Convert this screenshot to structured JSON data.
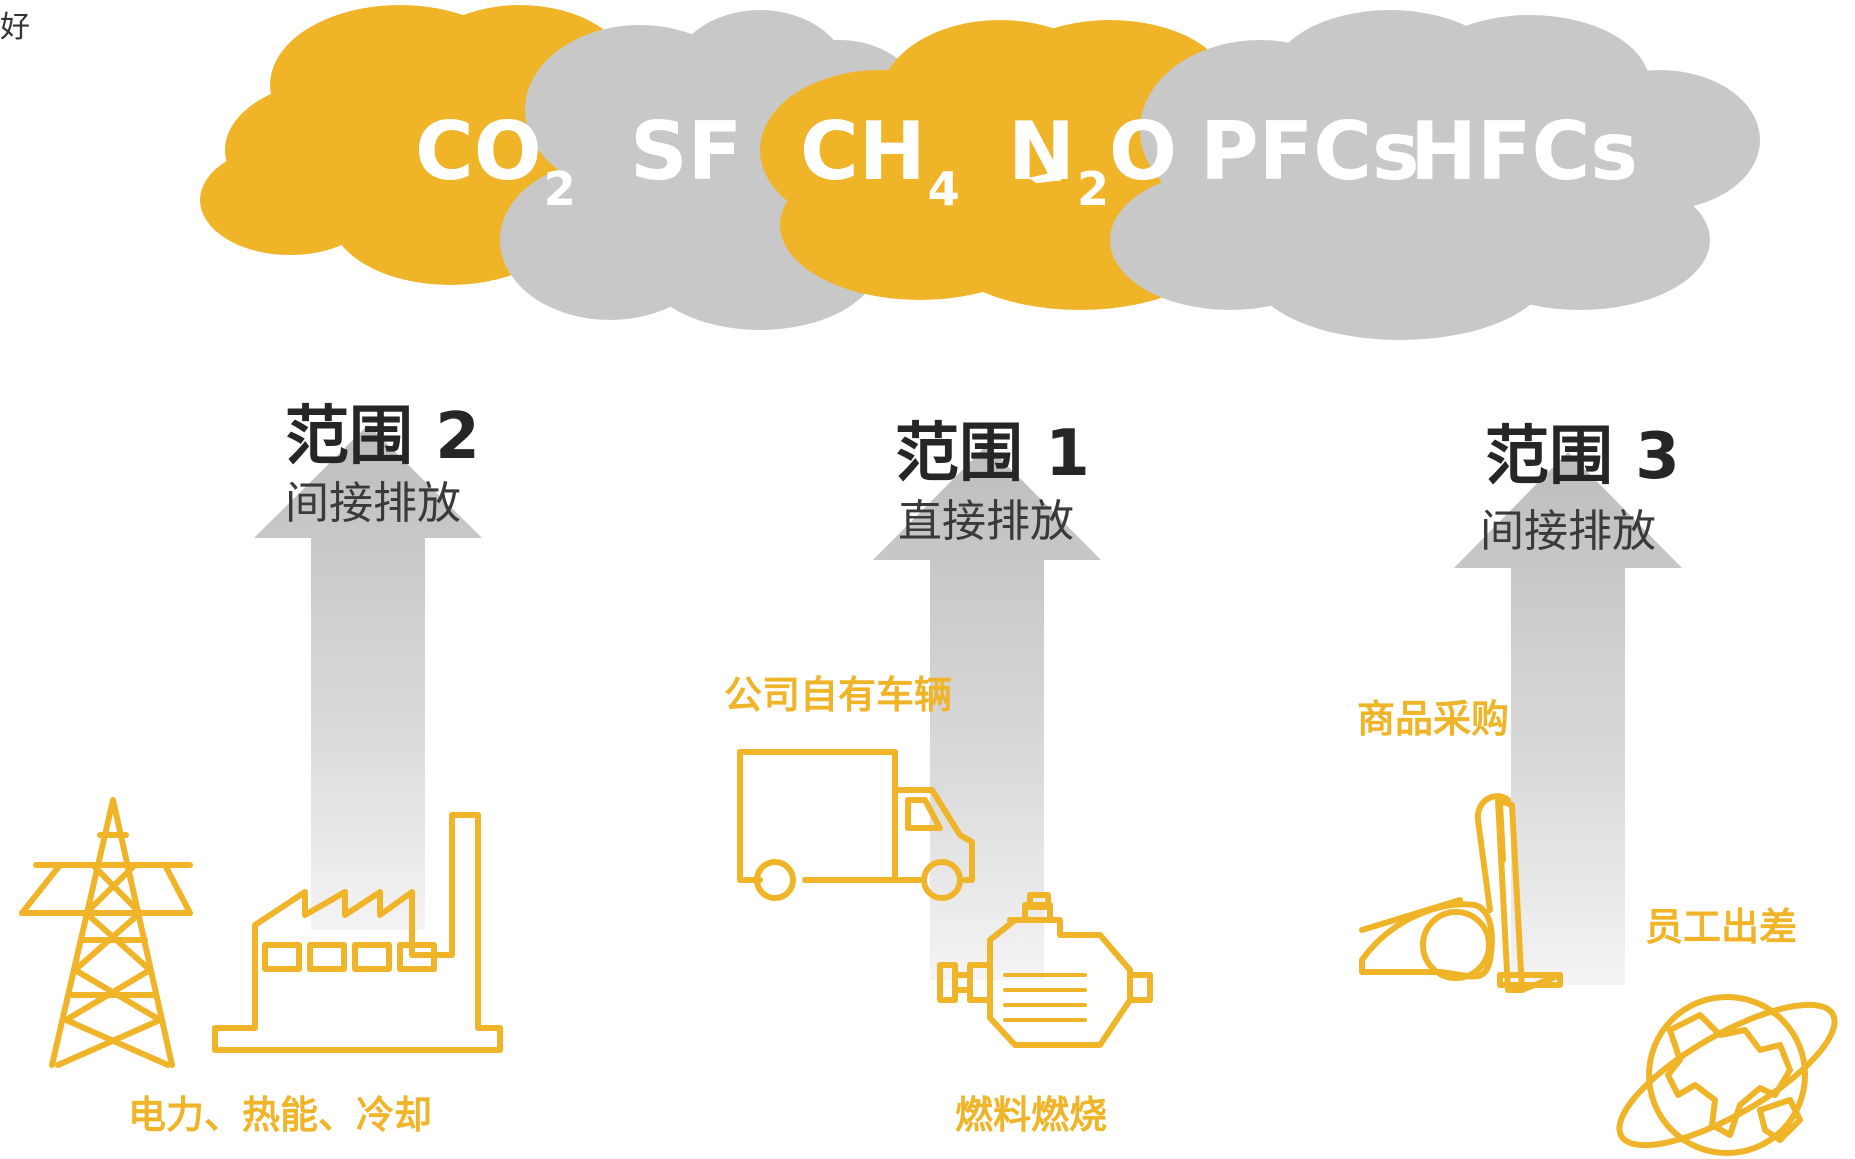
{
  "corner_text": "好",
  "gases": [
    {
      "base": "CO",
      "sub": "2"
    },
    {
      "base": "SF",
      "sub": ""
    },
    {
      "base": "CH",
      "sub": "4"
    },
    {
      "base": "N",
      "sub": "2",
      "tail": "O"
    },
    {
      "base": "PFCs",
      "sub": ""
    },
    {
      "base": "HFCs",
      "sub": ""
    }
  ],
  "scopes": [
    {
      "title": "范围 2",
      "subtitle": "间接排放"
    },
    {
      "title": "范围 1",
      "subtitle": "直接排放"
    },
    {
      "title": "范围 3",
      "subtitle": "间接排放"
    }
  ],
  "categories": {
    "power": "电力、热能、冷却",
    "vehicles": "公司自有车辆",
    "fuel": "燃料燃烧",
    "goods": "商品采购",
    "travel": "员工出差"
  },
  "colors": {
    "accent": "#F0B429",
    "cloud_gray": "#C8C8C8",
    "text_dark": "#262626"
  },
  "icons": [
    "transmission-tower-icon",
    "factory-icon",
    "truck-icon",
    "engine-icon",
    "vacuum-cleaner-icon",
    "globe-icon"
  ]
}
